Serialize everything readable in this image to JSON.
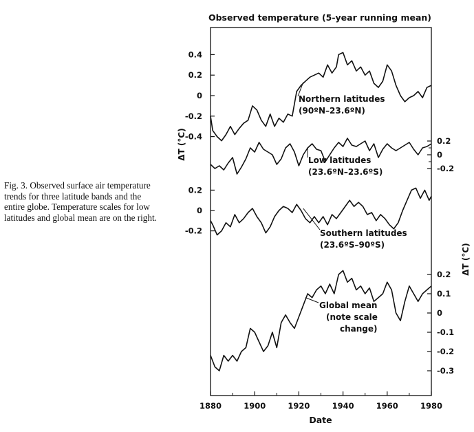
{
  "caption": {
    "text": "Fig. 3. Observed surface air temperature trends for three latitude bands and the entire globe. Temperature scales for low latitudes and global mean are on the right."
  },
  "chart_data": {
    "type": "line",
    "title": "Observed temperature (5-year running mean)",
    "xlabel": "Date",
    "ylabel_left": "ΔT (°C)",
    "ylabel_right": "ΔT (°C)",
    "xlim": [
      1880,
      1980
    ],
    "x_ticks": [
      "1880",
      "1900",
      "1920",
      "1940",
      "1960",
      "1980"
    ],
    "grid": false,
    "left_ticks_north": [
      "0.4",
      "0.2",
      "0",
      "-0.2",
      "-0.4"
    ],
    "left_ticks_south": [
      "0.2",
      "0",
      "-0.2"
    ],
    "right_ticks_low": [
      "0.2",
      "0",
      "-0.2"
    ],
    "right_ticks_global": [
      "0.2",
      "0.1",
      "0",
      "-0.1",
      "-0.2",
      "-0.3"
    ],
    "series": [
      {
        "label": [
          "Northern latitudes",
          "(90ºN–23.6ºN)"
        ],
        "axis": "left",
        "points": [
          [
            1880,
            -0.2
          ],
          [
            1881,
            -0.34
          ],
          [
            1883,
            -0.4
          ],
          [
            1885,
            -0.44
          ],
          [
            1887,
            -0.38
          ],
          [
            1889,
            -0.3
          ],
          [
            1891,
            -0.38
          ],
          [
            1893,
            -0.32
          ],
          [
            1895,
            -0.27
          ],
          [
            1897,
            -0.24
          ],
          [
            1899,
            -0.1
          ],
          [
            1901,
            -0.14
          ],
          [
            1903,
            -0.24
          ],
          [
            1905,
            -0.3
          ],
          [
            1907,
            -0.18
          ],
          [
            1909,
            -0.3
          ],
          [
            1911,
            -0.22
          ],
          [
            1913,
            -0.26
          ],
          [
            1915,
            -0.18
          ],
          [
            1917,
            -0.2
          ],
          [
            1919,
            0.04
          ],
          [
            1921,
            0.1
          ],
          [
            1923,
            0.14
          ],
          [
            1925,
            0.18
          ],
          [
            1927,
            0.2
          ],
          [
            1929,
            0.22
          ],
          [
            1931,
            0.18
          ],
          [
            1933,
            0.3
          ],
          [
            1935,
            0.22
          ],
          [
            1937,
            0.28
          ],
          [
            1938,
            0.4
          ],
          [
            1940,
            0.42
          ],
          [
            1942,
            0.3
          ],
          [
            1944,
            0.34
          ],
          [
            1946,
            0.24
          ],
          [
            1948,
            0.28
          ],
          [
            1950,
            0.2
          ],
          [
            1952,
            0.24
          ],
          [
            1954,
            0.12
          ],
          [
            1956,
            0.08
          ],
          [
            1958,
            0.14
          ],
          [
            1960,
            0.3
          ],
          [
            1962,
            0.24
          ],
          [
            1964,
            0.1
          ],
          [
            1966,
            0.0
          ],
          [
            1968,
            -0.06
          ],
          [
            1970,
            -0.02
          ],
          [
            1972,
            0.0
          ],
          [
            1974,
            0.04
          ],
          [
            1976,
            -0.02
          ],
          [
            1978,
            0.08
          ],
          [
            1980,
            0.1
          ]
        ]
      },
      {
        "label": [
          "Low latitudes",
          "(23.6ºN–23.6ºS)"
        ],
        "axis": "right",
        "points": [
          [
            1880,
            -0.14
          ],
          [
            1882,
            -0.2
          ],
          [
            1884,
            -0.16
          ],
          [
            1886,
            -0.22
          ],
          [
            1888,
            -0.12
          ],
          [
            1890,
            -0.04
          ],
          [
            1892,
            -0.28
          ],
          [
            1894,
            -0.18
          ],
          [
            1896,
            -0.06
          ],
          [
            1898,
            0.1
          ],
          [
            1900,
            0.04
          ],
          [
            1902,
            0.18
          ],
          [
            1904,
            0.08
          ],
          [
            1906,
            0.04
          ],
          [
            1908,
            0.0
          ],
          [
            1910,
            -0.14
          ],
          [
            1912,
            -0.06
          ],
          [
            1914,
            0.1
          ],
          [
            1916,
            0.16
          ],
          [
            1918,
            0.04
          ],
          [
            1920,
            -0.16
          ],
          [
            1922,
            0.0
          ],
          [
            1924,
            0.1
          ],
          [
            1926,
            0.16
          ],
          [
            1928,
            0.08
          ],
          [
            1930,
            0.06
          ],
          [
            1932,
            -0.1
          ],
          [
            1934,
            0.0
          ],
          [
            1936,
            0.1
          ],
          [
            1938,
            0.18
          ],
          [
            1940,
            0.12
          ],
          [
            1942,
            0.24
          ],
          [
            1944,
            0.14
          ],
          [
            1946,
            0.12
          ],
          [
            1948,
            0.16
          ],
          [
            1950,
            0.2
          ],
          [
            1952,
            0.06
          ],
          [
            1954,
            0.16
          ],
          [
            1956,
            -0.04
          ],
          [
            1958,
            0.08
          ],
          [
            1960,
            0.16
          ],
          [
            1962,
            0.1
          ],
          [
            1964,
            0.06
          ],
          [
            1966,
            0.1
          ],
          [
            1968,
            0.14
          ],
          [
            1970,
            0.18
          ],
          [
            1972,
            0.08
          ],
          [
            1974,
            0.0
          ],
          [
            1976,
            0.1
          ],
          [
            1978,
            0.12
          ],
          [
            1980,
            0.16
          ]
        ]
      },
      {
        "label": [
          "Southern latitudes",
          "(23.6ºS–90ºS)"
        ],
        "axis": "left",
        "points": [
          [
            1880,
            -0.1
          ],
          [
            1881,
            -0.14
          ],
          [
            1883,
            -0.24
          ],
          [
            1885,
            -0.2
          ],
          [
            1887,
            -0.12
          ],
          [
            1889,
            -0.16
          ],
          [
            1891,
            -0.04
          ],
          [
            1893,
            -0.12
          ],
          [
            1895,
            -0.08
          ],
          [
            1897,
            -0.02
          ],
          [
            1899,
            0.02
          ],
          [
            1901,
            -0.06
          ],
          [
            1903,
            -0.12
          ],
          [
            1905,
            -0.22
          ],
          [
            1907,
            -0.16
          ],
          [
            1909,
            -0.06
          ],
          [
            1911,
            0.0
          ],
          [
            1913,
            0.04
          ],
          [
            1915,
            0.02
          ],
          [
            1917,
            -0.02
          ],
          [
            1919,
            0.06
          ],
          [
            1921,
            0.0
          ],
          [
            1923,
            -0.08
          ],
          [
            1925,
            -0.12
          ],
          [
            1927,
            -0.06
          ],
          [
            1929,
            -0.12
          ],
          [
            1931,
            -0.06
          ],
          [
            1933,
            -0.14
          ],
          [
            1935,
            -0.04
          ],
          [
            1937,
            -0.08
          ],
          [
            1939,
            -0.02
          ],
          [
            1941,
            0.04
          ],
          [
            1943,
            0.1
          ],
          [
            1945,
            0.04
          ],
          [
            1947,
            0.08
          ],
          [
            1949,
            0.04
          ],
          [
            1951,
            -0.04
          ],
          [
            1953,
            -0.02
          ],
          [
            1955,
            -0.1
          ],
          [
            1957,
            -0.04
          ],
          [
            1959,
            -0.08
          ],
          [
            1961,
            -0.14
          ],
          [
            1963,
            -0.18
          ],
          [
            1965,
            -0.12
          ],
          [
            1967,
            0.0
          ],
          [
            1969,
            0.1
          ],
          [
            1971,
            0.2
          ],
          [
            1973,
            0.22
          ],
          [
            1975,
            0.12
          ],
          [
            1977,
            0.2
          ],
          [
            1979,
            0.1
          ],
          [
            1980,
            0.14
          ]
        ]
      },
      {
        "label": [
          "Global mean",
          "(note scale",
          "change)"
        ],
        "axis": "right",
        "points": [
          [
            1880,
            -0.22
          ],
          [
            1882,
            -0.28
          ],
          [
            1884,
            -0.3
          ],
          [
            1886,
            -0.22
          ],
          [
            1888,
            -0.25
          ],
          [
            1890,
            -0.22
          ],
          [
            1892,
            -0.25
          ],
          [
            1894,
            -0.2
          ],
          [
            1896,
            -0.18
          ],
          [
            1898,
            -0.08
          ],
          [
            1900,
            -0.1
          ],
          [
            1902,
            -0.15
          ],
          [
            1904,
            -0.2
          ],
          [
            1906,
            -0.17
          ],
          [
            1908,
            -0.1
          ],
          [
            1910,
            -0.18
          ],
          [
            1912,
            -0.05
          ],
          [
            1914,
            -0.01
          ],
          [
            1916,
            -0.05
          ],
          [
            1918,
            -0.08
          ],
          [
            1920,
            -0.02
          ],
          [
            1922,
            0.04
          ],
          [
            1924,
            0.1
          ],
          [
            1926,
            0.08
          ],
          [
            1928,
            0.12
          ],
          [
            1930,
            0.14
          ],
          [
            1932,
            0.1
          ],
          [
            1934,
            0.15
          ],
          [
            1936,
            0.1
          ],
          [
            1938,
            0.2
          ],
          [
            1940,
            0.22
          ],
          [
            1942,
            0.16
          ],
          [
            1944,
            0.18
          ],
          [
            1946,
            0.12
          ],
          [
            1948,
            0.14
          ],
          [
            1950,
            0.1
          ],
          [
            1952,
            0.13
          ],
          [
            1954,
            0.06
          ],
          [
            1956,
            0.08
          ],
          [
            1958,
            0.1
          ],
          [
            1960,
            0.16
          ],
          [
            1962,
            0.12
          ],
          [
            1964,
            0.0
          ],
          [
            1966,
            -0.04
          ],
          [
            1968,
            0.06
          ],
          [
            1970,
            0.14
          ],
          [
            1972,
            0.1
          ],
          [
            1974,
            0.06
          ],
          [
            1976,
            0.1
          ],
          [
            1978,
            0.12
          ],
          [
            1980,
            0.14
          ]
        ]
      }
    ]
  }
}
